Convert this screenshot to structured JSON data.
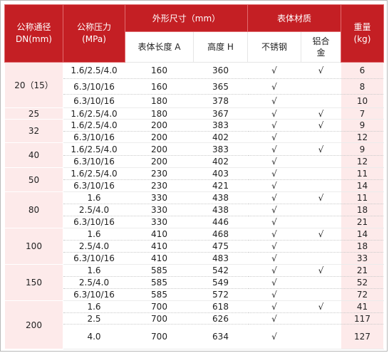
{
  "headers": {
    "dn_line1": "公称通径",
    "dn_line2": "DN(mm)",
    "pn_line1": "公称压力",
    "pn_line2": "(MPa)",
    "dimensions": "外形尺寸（mm）",
    "length": "表体长度 A",
    "height": "高度 H",
    "material": "表体材质",
    "stainless": "不锈钢",
    "aluminum": "铝合金",
    "weight_line1": "重量",
    "weight_line2": "(kg)"
  },
  "groups": [
    {
      "dn": "20（15）",
      "rows": [
        {
          "pn": "1.6/2.5/4.0",
          "a": "160",
          "h": "360",
          "ss": "√",
          "al": "√",
          "w": "6"
        },
        {
          "pn": "6.3/10/16",
          "a": "160",
          "h": "365",
          "ss": "√",
          "al": "",
          "w": "8"
        },
        {
          "pn": "6.3/10/16",
          "a": "180",
          "h": "378",
          "ss": "√",
          "al": "",
          "w": "10"
        }
      ]
    },
    {
      "dn": "25",
      "rows": [
        {
          "pn": "1.6/2.5/4.0",
          "a": "180",
          "h": "367",
          "ss": "√",
          "al": "√",
          "w": "7"
        }
      ]
    },
    {
      "dn": "32",
      "rows": [
        {
          "pn": "1.6/2.5/4.0",
          "a": "200",
          "h": "383",
          "ss": "√",
          "al": "√",
          "w": "9"
        },
        {
          "pn": "6.3/10/16",
          "a": "200",
          "h": "402",
          "ss": "√",
          "al": "",
          "w": "12"
        }
      ]
    },
    {
      "dn": "40",
      "rows": [
        {
          "pn": "1.6/2.5/4.0",
          "a": "200",
          "h": "383",
          "ss": "√",
          "al": "√",
          "w": "9"
        },
        {
          "pn": "6.3/10/16",
          "a": "200",
          "h": "402",
          "ss": "√",
          "al": "",
          "w": "12"
        }
      ]
    },
    {
      "dn": "50",
      "rows": [
        {
          "pn": "1.6/2.5/4.0",
          "a": "230",
          "h": "403",
          "ss": "√",
          "al": "",
          "w": "11"
        },
        {
          "pn": "6.3/10/16",
          "a": "230",
          "h": "421",
          "ss": "√",
          "al": "",
          "w": "14"
        }
      ]
    },
    {
      "dn": "80",
      "rows": [
        {
          "pn": "1.6",
          "a": "330",
          "h": "438",
          "ss": "√",
          "al": "√",
          "w": "11"
        },
        {
          "pn": "2.5/4.0",
          "a": "330",
          "h": "438",
          "ss": "√",
          "al": "",
          "w": "18"
        },
        {
          "pn": "6.3/10/16",
          "a": "330",
          "h": "446",
          "ss": "√",
          "al": "",
          "w": "21"
        }
      ]
    },
    {
      "dn": "100",
      "rows": [
        {
          "pn": "1.6",
          "a": "410",
          "h": "468",
          "ss": "√",
          "al": "√",
          "w": "14"
        },
        {
          "pn": "2.5/4.0",
          "a": "410",
          "h": "475",
          "ss": "√",
          "al": "",
          "w": "18"
        },
        {
          "pn": "6.3/10/16",
          "a": "410",
          "h": "483",
          "ss": "√",
          "al": "",
          "w": "33"
        }
      ]
    },
    {
      "dn": "150",
      "rows": [
        {
          "pn": "1.6",
          "a": "585",
          "h": "542",
          "ss": "√",
          "al": "√",
          "w": "21"
        },
        {
          "pn": "2.5/4.0",
          "a": "585",
          "h": "549",
          "ss": "√",
          "al": "",
          "w": "52"
        },
        {
          "pn": "6.3/10/16",
          "a": "585",
          "h": "572",
          "ss": "√",
          "al": "",
          "w": "72"
        }
      ]
    },
    {
      "dn": "200",
      "rows": [
        {
          "pn": "1.6",
          "a": "700",
          "h": "618",
          "ss": "√",
          "al": "√",
          "w": "41"
        },
        {
          "pn": "2.5",
          "a": "700",
          "h": "626",
          "ss": "√",
          "al": "",
          "w": "117"
        },
        {
          "pn": "4.0",
          "a": "700",
          "h": "634",
          "ss": "√",
          "al": "",
          "w": "127"
        }
      ]
    }
  ],
  "colors": {
    "header_red": "#c41f24",
    "row_tint": "#fdeaea"
  }
}
